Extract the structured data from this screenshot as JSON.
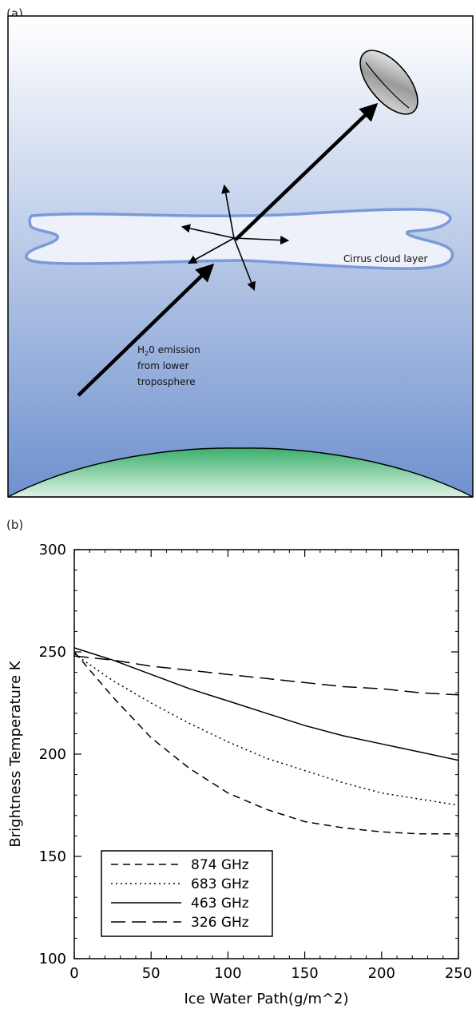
{
  "panel_a": {
    "label": "(a)",
    "cloud_label": "Cirrus cloud layer",
    "emission_label": {
      "line1_prefix": "H",
      "line1_sub": "2",
      "line1_rest": "0 emission",
      "line2": "from lower",
      "line3": "troposphere"
    },
    "colors": {
      "sky_top": "#ffffff",
      "sky_bottom": "#6f91cf",
      "cloud_outline": "#7b9ad8",
      "cloud_fill": "#eef0fa",
      "ground_top": "#3bb06c",
      "ground_bottom": "#dff2e6"
    },
    "icons": [
      "satellite-dish-icon",
      "scattering-arrows-icon"
    ]
  },
  "panel_b": {
    "label": "(b)"
  },
  "chart_data": {
    "type": "line",
    "title": "",
    "xlabel": "Ice Water Path(g/m^2)",
    "ylabel": "Brightness Temperature K",
    "xlim": [
      0,
      250
    ],
    "ylim": [
      100,
      300
    ],
    "xticks": [
      0,
      50,
      100,
      150,
      200,
      250
    ],
    "yticks": [
      100,
      150,
      200,
      250,
      300
    ],
    "grid": false,
    "legend_placement": "bottom-left",
    "series": [
      {
        "name": "874 GHz",
        "dash": "dashed",
        "x": [
          0,
          25,
          50,
          75,
          100,
          125,
          150,
          175,
          200,
          225,
          250
        ],
        "y": [
          250,
          228,
          208,
          193,
          181,
          173,
          167,
          164,
          162,
          161,
          161
        ]
      },
      {
        "name": "683 GHz",
        "dash": "dotted",
        "x": [
          0,
          25,
          50,
          75,
          100,
          125,
          150,
          175,
          200,
          225,
          250
        ],
        "y": [
          249,
          236,
          225,
          215,
          206,
          198,
          192,
          186,
          181,
          178,
          175
        ]
      },
      {
        "name": "463 GHz",
        "dash": "solid",
        "x": [
          0,
          25,
          50,
          75,
          100,
          125,
          150,
          175,
          200,
          225,
          250
        ],
        "y": [
          252,
          246,
          239,
          232,
          226,
          220,
          214,
          209,
          205,
          201,
          197
        ]
      },
      {
        "name": "326 GHz",
        "dash": "longdash",
        "x": [
          0,
          25,
          50,
          75,
          100,
          125,
          150,
          175,
          200,
          225,
          250
        ],
        "y": [
          248,
          246,
          243,
          241,
          239,
          237,
          235,
          233,
          232,
          230,
          229
        ]
      }
    ]
  }
}
